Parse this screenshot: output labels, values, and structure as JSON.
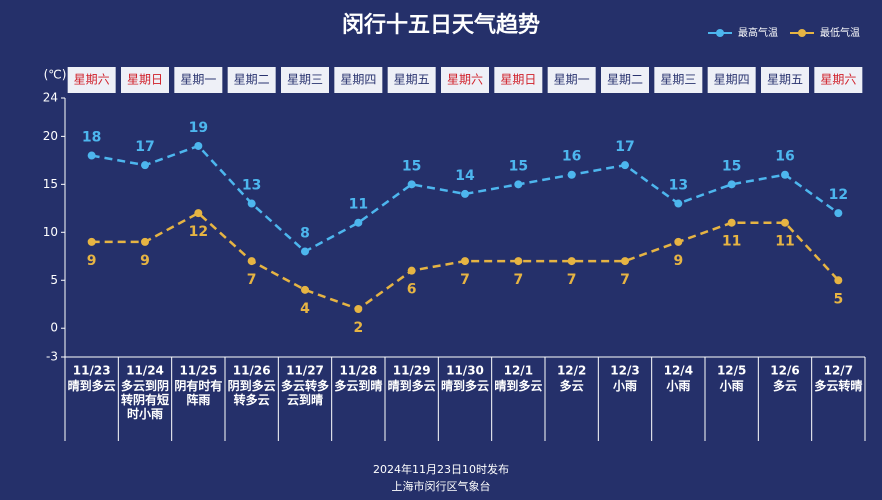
{
  "chart_data": {
    "type": "line",
    "title": "闵行十五日天气趋势",
    "y_unit": "(℃)",
    "categories": [
      "11/23",
      "11/24",
      "11/25",
      "11/26",
      "11/27",
      "11/28",
      "11/29",
      "11/30",
      "12/1",
      "12/2",
      "12/3",
      "12/4",
      "12/5",
      "12/6",
      "12/7"
    ],
    "weekdays": [
      "星期六",
      "星期日",
      "星期一",
      "星期二",
      "星期三",
      "星期四",
      "星期五",
      "星期六",
      "星期日",
      "星期一",
      "星期二",
      "星期三",
      "星期四",
      "星期五",
      "星期六"
    ],
    "weekday_colors": [
      "#d0202a",
      "#d0202a",
      "#2a3470",
      "#2a3470",
      "#2a3470",
      "#2a3470",
      "#2a3470",
      "#d0202a",
      "#d0202a",
      "#2a3470",
      "#2a3470",
      "#2a3470",
      "#2a3470",
      "#2a3470",
      "#d0202a"
    ],
    "weather": [
      "晴到多云",
      "多云到阴转阴有短时小雨",
      "阴有时有阵雨",
      "阴到多云转多云",
      "多云转多云到晴",
      "多云到晴",
      "晴到多云",
      "晴到多云",
      "晴到多云",
      "多云",
      "小雨",
      "小雨",
      "小雨",
      "多云",
      "多云转晴"
    ],
    "series": [
      {
        "name": "最高气温",
        "color": "#4db6ee",
        "values": [
          18,
          17,
          19,
          13,
          8,
          11,
          15,
          14,
          15,
          16,
          17,
          13,
          15,
          16,
          12
        ]
      },
      {
        "name": "最低气温",
        "color": "#e6b443",
        "values": [
          9,
          9,
          12,
          7,
          4,
          2,
          6,
          7,
          7,
          7,
          7,
          9,
          11,
          11,
          5
        ]
      }
    ],
    "ylim": [
      -3,
      24
    ],
    "yticks": [
      -3,
      0,
      5,
      10,
      15,
      20,
      24
    ],
    "footer": [
      "2024年11月23日10时发布",
      "上海市闵行区气象台"
    ]
  }
}
